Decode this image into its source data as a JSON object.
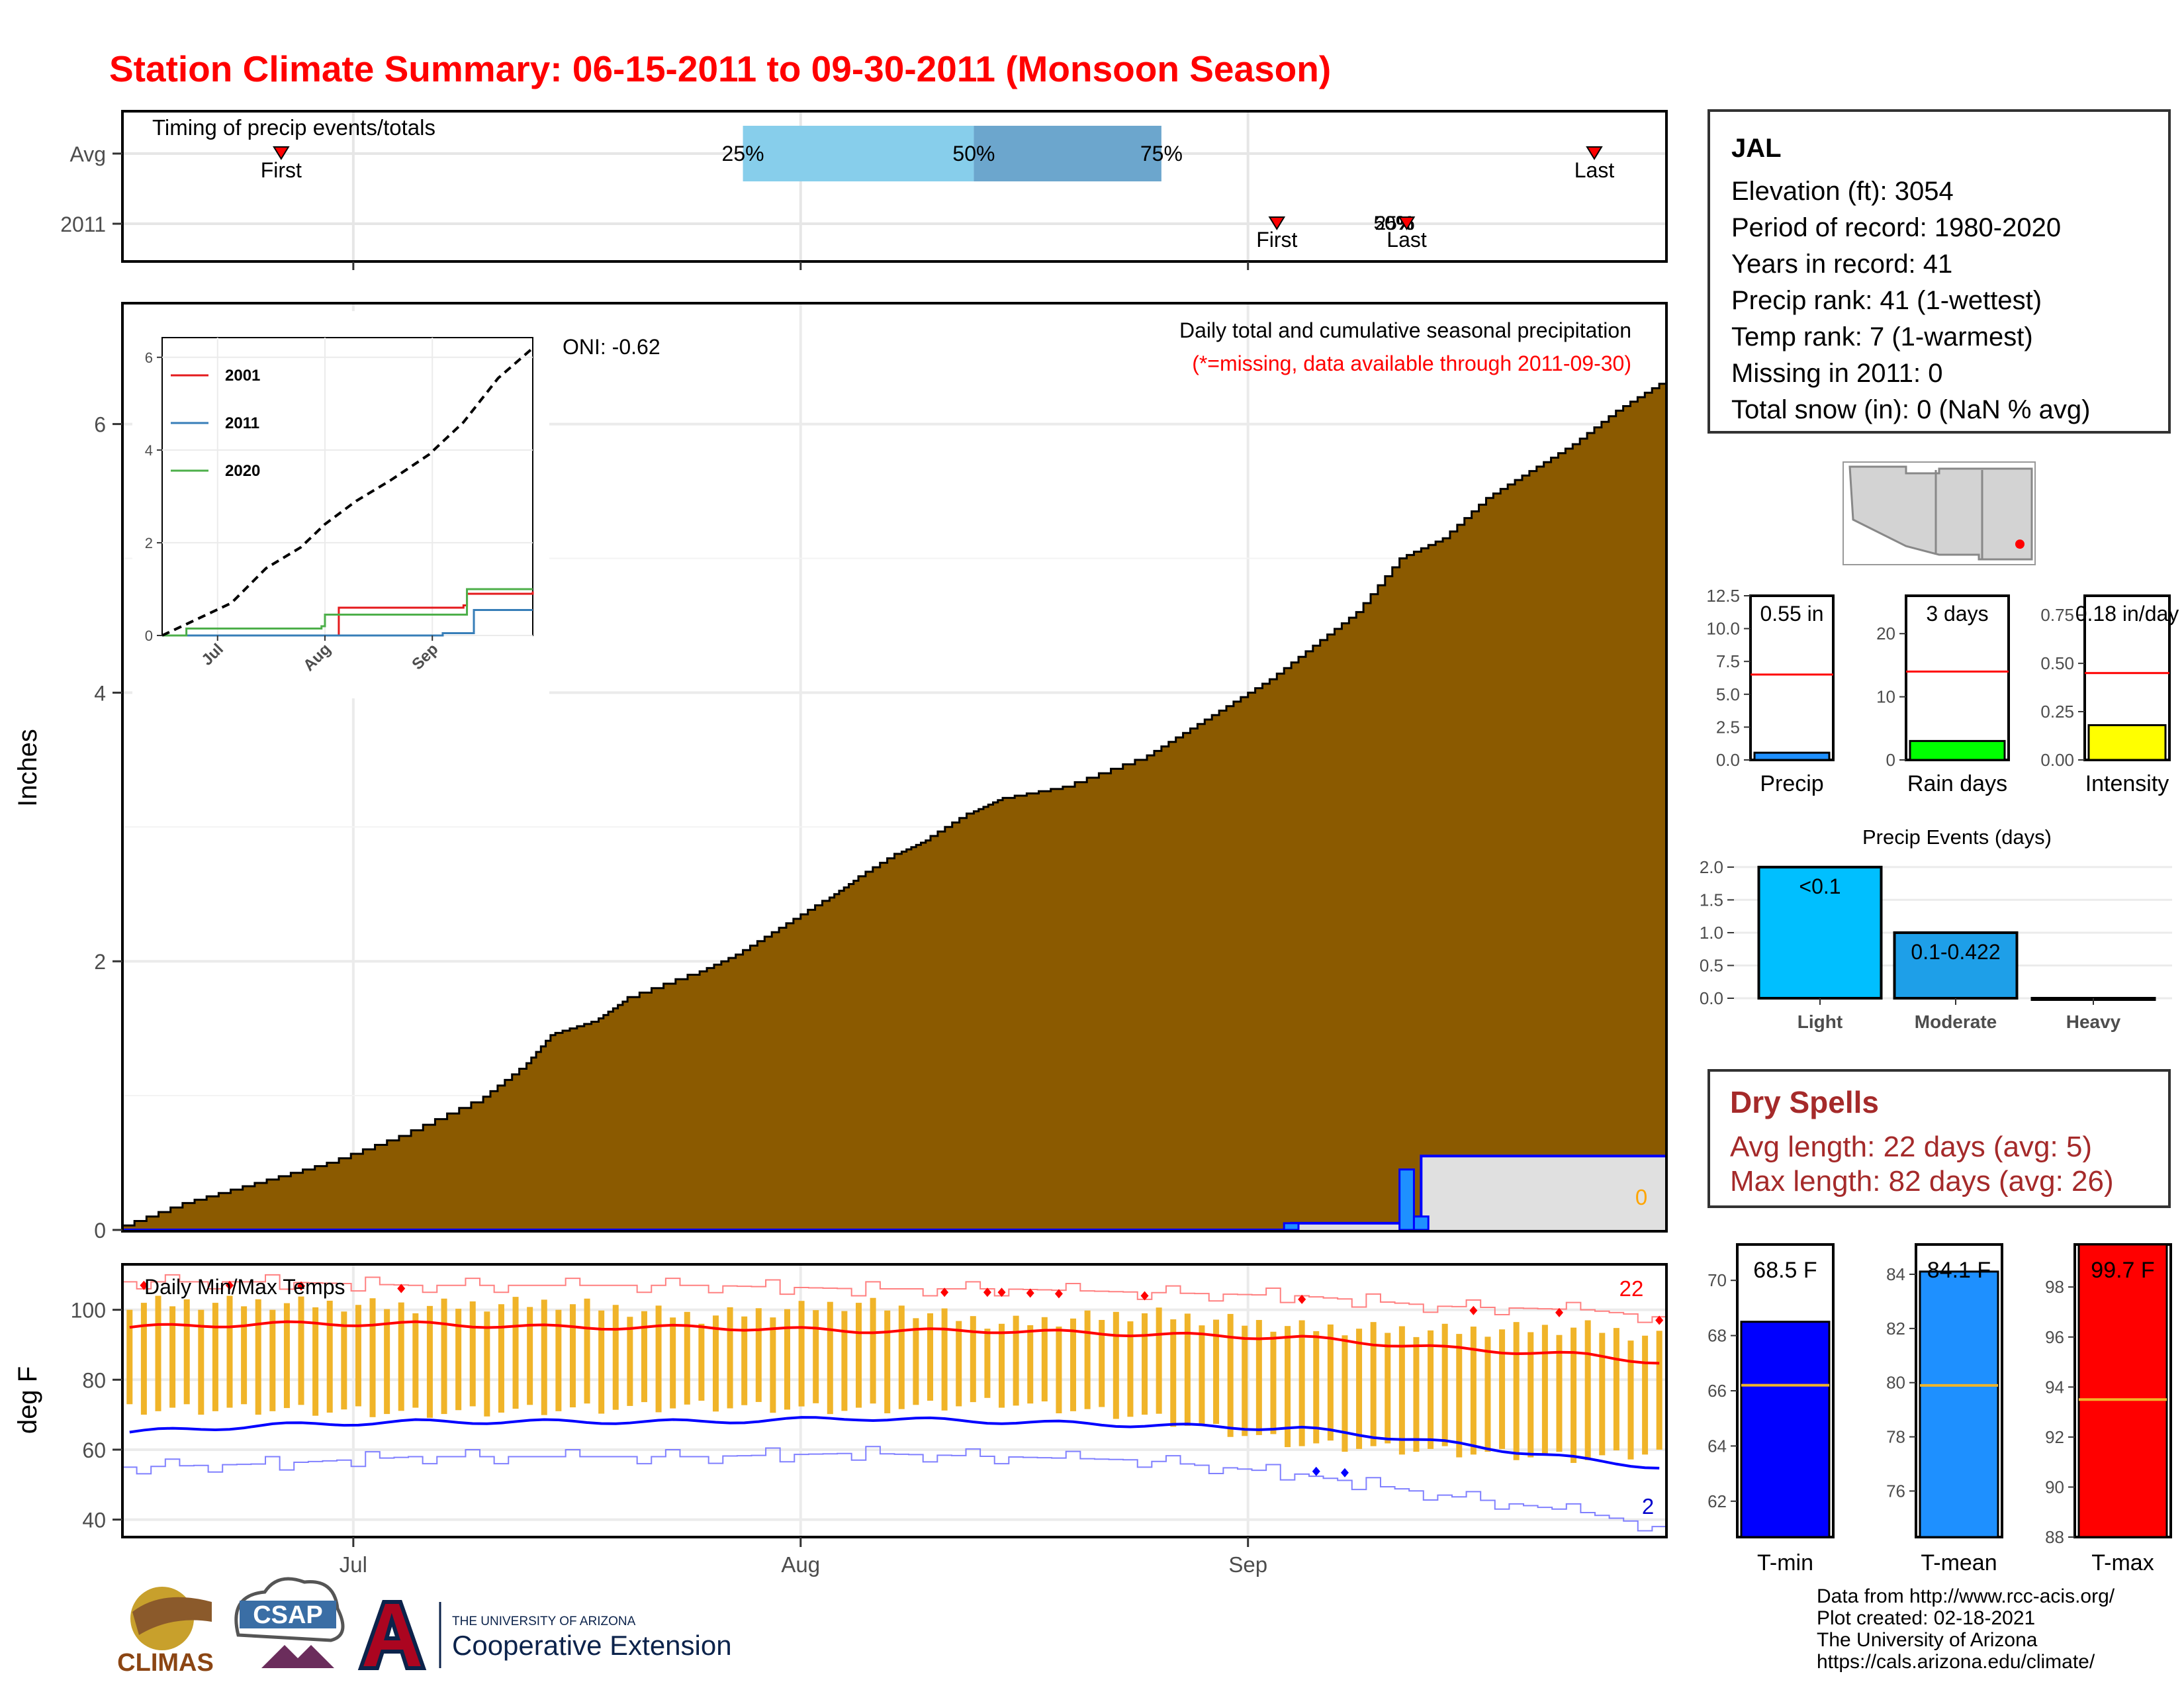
{
  "title": "Station Climate Summary: 06-15-2011 to 09-30-2011 (Monsoon Season)",
  "timing": {
    "title": "Timing of precip events/totals",
    "rows": [
      "Avg",
      "2011"
    ],
    "avg": {
      "first_date": "2011-06-26",
      "last_date": "2011-09-25",
      "p25_date": "2011-07-28",
      "p50_date": "2011-08-13",
      "p75_date": "2011-08-26"
    },
    "y2011": {
      "first_date": "2011-09-03",
      "last_date": "2011-09-12",
      "pct_date": "2011-09-12"
    },
    "labels": {
      "first": "First",
      "last": "Last",
      "p25": "25%",
      "p50": "50%",
      "p75": "75%",
      "overlap": "50%",
      "overlap2": "25%"
    },
    "colors": {
      "q1": "#87ceeb",
      "q2": "#6ca6cd",
      "marker": "#ff0000"
    }
  },
  "precip_chart": {
    "ylabel": "Inches",
    "ylim": [
      0,
      6.9
    ],
    "yticks": [
      0,
      2,
      4,
      6
    ],
    "xticks": [
      {
        "label": "Jul",
        "date": "2011-07-01"
      },
      {
        "label": "Aug",
        "date": "2011-08-01"
      },
      {
        "label": "Sep",
        "date": "2011-09-01"
      }
    ],
    "date_range": [
      "2011-06-15",
      "2011-09-30"
    ],
    "title": "Daily total and cumulative seasonal precipitation",
    "subtitle": "(*=missing, data available through 2011-09-30)",
    "oni": "ONI: -0.62",
    "corner_value": "0",
    "colors": {
      "avg_fill": "#8b5a00",
      "obs_fill": "#e0e0e0",
      "obs_line": "#0000ff",
      "bar": "#1e90ff",
      "subtitle": "#ff0000",
      "corner": "#ffa500"
    }
  },
  "chart_data": [
    {
      "type": "area",
      "name": "cumulative average precipitation",
      "x": [
        "2011-06-15",
        "2011-06-20",
        "2011-06-25",
        "2011-06-30",
        "2011-07-05",
        "2011-07-10",
        "2011-07-13",
        "2011-07-15",
        "2011-07-18",
        "2011-07-20",
        "2011-07-25",
        "2011-07-28",
        "2011-07-31",
        "2011-08-03",
        "2011-08-05",
        "2011-08-08",
        "2011-08-10",
        "2011-08-13",
        "2011-08-15",
        "2011-08-20",
        "2011-08-25",
        "2011-08-28",
        "2011-08-31",
        "2011-09-03",
        "2011-09-06",
        "2011-09-09",
        "2011-09-12",
        "2011-09-15",
        "2011-09-18",
        "2011-09-21",
        "2011-09-24",
        "2011-09-27",
        "2011-09-30"
      ],
      "y": [
        0.0,
        0.2,
        0.35,
        0.5,
        0.7,
        0.95,
        1.2,
        1.45,
        1.55,
        1.7,
        1.9,
        2.05,
        2.25,
        2.45,
        2.6,
        2.8,
        2.9,
        3.1,
        3.2,
        3.3,
        3.5,
        3.7,
        3.9,
        4.1,
        4.35,
        4.6,
        5.0,
        5.15,
        5.45,
        5.65,
        5.85,
        6.1,
        6.3
      ],
      "ylim": [
        0,
        6.9
      ]
    },
    {
      "type": "line",
      "name": "cumulative observed 2011 precipitation",
      "x": [
        "2011-06-15",
        "2011-09-03",
        "2011-09-04",
        "2011-09-12",
        "2011-09-13",
        "2011-09-30"
      ],
      "y": [
        0,
        0,
        0.05,
        0.05,
        0.55,
        0.55
      ],
      "bars": [
        {
          "x": "2011-09-04",
          "y": 0.05
        },
        {
          "x": "2011-09-12",
          "y": 0.45
        },
        {
          "x": "2011-09-13",
          "y": 0.1
        }
      ]
    },
    {
      "type": "line",
      "name": "inset cumulative precipitation",
      "ylim": [
        0,
        6.2
      ],
      "yticks": [
        0,
        2,
        4,
        6
      ],
      "xticks": [
        {
          "label": "Jul",
          "date": "2011-07-01"
        },
        {
          "label": "Aug",
          "date": "2011-08-01"
        },
        {
          "label": "Sep",
          "date": "2011-09-01"
        }
      ],
      "series": [
        {
          "name": "2001",
          "color": "#e41a1c",
          "x": [
            "2011-06-15",
            "2011-08-04",
            "2011-08-05",
            "2011-09-10",
            "2011-09-11",
            "2011-09-30"
          ],
          "y": [
            0,
            0,
            0.6,
            0.65,
            0.9,
            0.95
          ]
        },
        {
          "name": "2011",
          "color": "#377eb8",
          "x": [
            "2011-06-15",
            "2011-09-03",
            "2011-09-04",
            "2011-09-12",
            "2011-09-13",
            "2011-09-30"
          ],
          "y": [
            0,
            0,
            0.05,
            0.05,
            0.55,
            0.55
          ]
        },
        {
          "name": "2020",
          "color": "#4daf4a",
          "x": [
            "2011-06-15",
            "2011-06-21",
            "2011-06-22",
            "2011-07-31",
            "2011-08-01",
            "2011-09-10",
            "2011-09-11",
            "2011-09-30"
          ],
          "y": [
            0,
            0,
            0.15,
            0.2,
            0.45,
            0.45,
            1.0,
            1.0
          ]
        },
        {
          "name": "average",
          "color": "#000000",
          "dashed": true,
          "x": [
            "2011-06-15",
            "2011-06-25",
            "2011-07-05",
            "2011-07-15",
            "2011-07-25",
            "2011-08-01",
            "2011-08-10",
            "2011-08-20",
            "2011-08-31",
            "2011-09-10",
            "2011-09-20",
            "2011-09-30"
          ],
          "y": [
            0,
            0.35,
            0.7,
            1.45,
            1.9,
            2.4,
            2.9,
            3.35,
            3.9,
            4.6,
            5.55,
            6.2
          ]
        }
      ]
    },
    {
      "type": "line",
      "name": "daily temperatures",
      "ylabel": "deg F",
      "ylim": [
        35,
        113
      ],
      "yticks": [
        40,
        60,
        80,
        100
      ],
      "title": "Daily Min/Max Temps",
      "record_high_label": "22",
      "record_low_label": "2",
      "colors": {
        "bar": "#f0b429",
        "avg_max": "#ff0000",
        "avg_min": "#0000ff",
        "rec_max": "#ff8080",
        "rec_min": "#8080ff"
      },
      "x": [
        "2011-06-15",
        "2011-06-25",
        "2011-07-05",
        "2011-07-15",
        "2011-07-25",
        "2011-08-05",
        "2011-08-15",
        "2011-08-25",
        "2011-09-05",
        "2011-09-15",
        "2011-09-25",
        "2011-09-30"
      ],
      "avg_max": [
        95,
        96,
        96,
        95,
        95,
        94,
        94,
        93,
        92,
        89,
        87,
        85
      ],
      "avg_min": [
        65,
        67,
        68,
        68,
        68,
        69,
        68,
        67,
        66,
        62,
        57,
        55
      ],
      "rec_max": [
        108,
        108,
        107,
        107,
        107,
        106,
        106,
        105,
        104,
        101,
        100,
        98
      ],
      "rec_min": [
        55,
        56,
        58,
        58,
        58,
        59,
        58,
        57,
        53,
        47,
        42,
        38
      ],
      "obs_max": [
        102,
        102,
        101,
        102,
        98,
        102,
        96,
        99,
        95,
        94,
        95,
        92
      ],
      "obs_min": [
        72,
        72,
        71,
        72,
        73,
        72,
        74,
        70,
        62,
        60,
        58,
        60
      ]
    }
  ],
  "station": {
    "name": "JAL",
    "lines": [
      "Elevation (ft): 3054",
      "Period of record: 1980-2020",
      "Years in record: 41",
      "Precip rank: 41 (1-wettest)",
      "Temp rank: 7 (1-warmest)",
      "Missing in 2011: 0",
      "Total snow (in): 0 (NaN % avg)"
    ]
  },
  "summary_bars": [
    {
      "label": "Precip",
      "value_label": "0.55 in",
      "value": 0.55,
      "avg": 6.5,
      "ylim": [
        0,
        12.5
      ],
      "ticks": [
        "0.0",
        "2.5",
        "5.0",
        "7.5",
        "10.0",
        "12.5"
      ],
      "color": "#1e90ff"
    },
    {
      "label": "Rain days",
      "value_label": "3 days",
      "value": 3,
      "avg": 14,
      "ylim": [
        0,
        26
      ],
      "ticks": [
        "0",
        "10",
        "20"
      ],
      "color": "#00ff00"
    },
    {
      "label": "Intensity",
      "value_label": "0.18 in/day",
      "value": 0.18,
      "avg": 0.45,
      "ylim": [
        0,
        0.85
      ],
      "ticks": [
        "0.00",
        "0.25",
        "0.50",
        "0.75"
      ],
      "color": "#ffff00"
    }
  ],
  "events": {
    "title": "Precip Events (days)",
    "ylim": [
      0,
      2.1
    ],
    "ticks": [
      "0.0",
      "0.5",
      "1.0",
      "1.5",
      "2.0"
    ],
    "categories": [
      "Light",
      "Moderate",
      "Heavy"
    ],
    "values": [
      2,
      1,
      0
    ],
    "bar_labels": [
      "<0.1",
      "0.1-0.422",
      ""
    ],
    "colors": [
      "#00bfff",
      "#1e9fe8",
      "#1e9fe8"
    ]
  },
  "dry_spells": {
    "title": "Dry Spells",
    "avg_line": "Avg length: 22 days (avg: 5)",
    "max_line": "Max length: 82 days (avg: 26)"
  },
  "temp_bars": [
    {
      "label": "T-min",
      "value_label": "68.5 F",
      "value": 68.5,
      "avg": 66.2,
      "ylim": [
        60.7,
        71.3
      ],
      "ticks": [
        "62",
        "64",
        "66",
        "68",
        "70"
      ],
      "color": "#0000ff"
    },
    {
      "label": "T-mean",
      "value_label": "84.1 F",
      "value": 84.1,
      "avg": 79.9,
      "ylim": [
        74.3,
        85.1
      ],
      "ticks": [
        "76",
        "78",
        "80",
        "82",
        "84"
      ],
      "color": "#1e90ff"
    },
    {
      "label": "T-max",
      "value_label": "99.7 F",
      "value": 99.7,
      "avg": 93.5,
      "ylim": [
        88,
        99.7
      ],
      "ticks": [
        "88",
        "90",
        "92",
        "94",
        "96",
        "98"
      ],
      "color": "#ff0000"
    }
  ],
  "credits": [
    "Data from http://www.rcc-acis.org/",
    "Plot created: 02-18-2021",
    "The University of Arizona",
    "https://cals.arizona.edu/climate/"
  ],
  "logos": {
    "climas": "CLIMAS",
    "csap": "CSAP",
    "ua_small": "THE UNIVERSITY OF ARIZONA",
    "ua_big": "Cooperative Extension"
  }
}
